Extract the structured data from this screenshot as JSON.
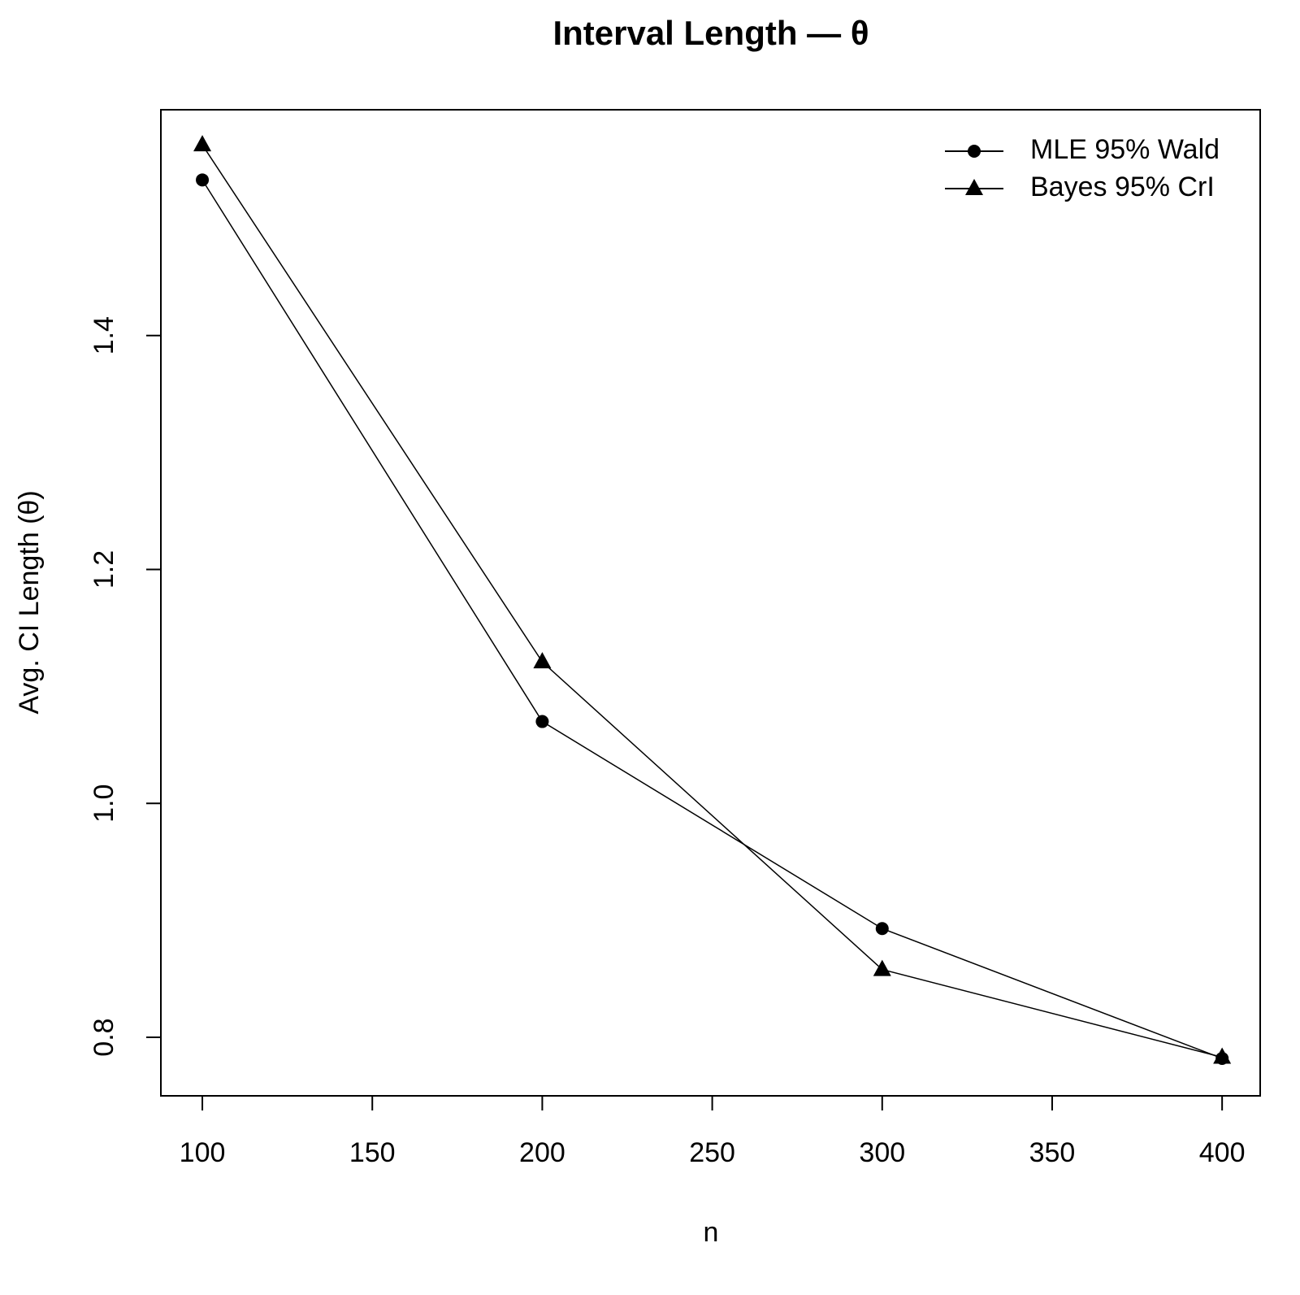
{
  "chart_data": {
    "type": "line",
    "title": "Interval Length — θ",
    "x_label": "n",
    "y_label": "Avg. CI Length (θ)",
    "x": [
      100,
      200,
      300,
      400
    ],
    "series": [
      {
        "name": "MLE 95% Wald",
        "color": "#000000",
        "marker": "circle",
        "values": [
          1.533,
          1.07,
          0.893,
          0.782
        ]
      },
      {
        "name": "Bayes 95% CrI",
        "color": "#000000",
        "marker": "triangle",
        "values": [
          1.563,
          1.121,
          0.858,
          0.783
        ]
      }
    ],
    "xlim": [
      87.8,
      411.2
    ],
    "xticks": [
      100,
      150,
      200,
      250,
      300,
      350,
      400
    ],
    "ylim": [
      0.75,
      1.593
    ],
    "yticks": [
      {
        "value": 0.8,
        "label": "0.8"
      },
      {
        "value": 1.0,
        "label": "1.0"
      },
      {
        "value": 1.2,
        "label": "1.2"
      },
      {
        "value": 1.4,
        "label": "1.4"
      }
    ],
    "legend": "top-right",
    "grid": false
  }
}
